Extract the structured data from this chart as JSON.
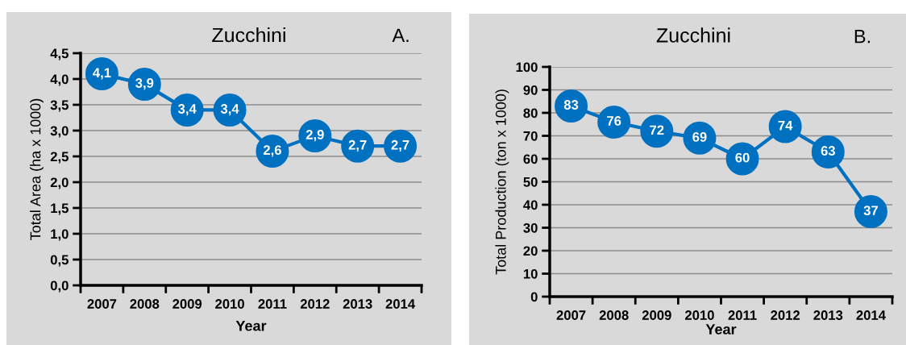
{
  "chart_data": [
    {
      "type": "line",
      "title": "Zucchini",
      "xlabel": "Year",
      "ylabel": "Total Area (ha x 1000)",
      "annotations": [
        "A."
      ],
      "categories": [
        "2007",
        "2008",
        "2009",
        "2010",
        "2011",
        "2012",
        "2013",
        "2014"
      ],
      "series": [
        {
          "color": "#0070c0",
          "values": [
            4.1,
            3.9,
            3.4,
            3.4,
            2.6,
            2.9,
            2.7,
            2.7
          ],
          "value_labels": [
            "4,1",
            "3,9",
            "3,4",
            "3,4",
            "2,6",
            "2,9",
            "2,7",
            "2,7"
          ]
        }
      ],
      "ylim": [
        0,
        4.5
      ],
      "yticks": [
        {
          "value": 0,
          "label": "0,0"
        },
        {
          "value": 0.5,
          "label": "0,5"
        },
        {
          "value": 1,
          "label": "1,0"
        },
        {
          "value": 1.5,
          "label": "1,5"
        },
        {
          "value": 2,
          "label": "2,0"
        },
        {
          "value": 2.5,
          "label": "2,5"
        },
        {
          "value": 3,
          "label": "3,0"
        },
        {
          "value": 3.5,
          "label": "3,5"
        },
        {
          "value": 4,
          "label": "4,0"
        },
        {
          "value": 4.5,
          "label": "4,5"
        }
      ],
      "grid": "y",
      "marker": "circle",
      "line_style": "solid"
    },
    {
      "type": "line",
      "title": "Zucchini",
      "xlabel": "Year",
      "ylabel": "Total Production (ton x 1000)",
      "annotations": [
        "B."
      ],
      "categories": [
        "2007",
        "2008",
        "2009",
        "2010",
        "2011",
        "2012",
        "2013",
        "2014"
      ],
      "series": [
        {
          "color": "#0070c0",
          "values": [
            83,
            76,
            72,
            69,
            60,
            74,
            63,
            37
          ]
        }
      ],
      "data_labels": true,
      "ylim": [
        0,
        100
      ],
      "yticks": [
        0,
        10,
        20,
        30,
        40,
        50,
        60,
        70,
        80,
        90,
        100
      ],
      "grid": "y",
      "marker": "circle",
      "line_style": "solid"
    }
  ]
}
